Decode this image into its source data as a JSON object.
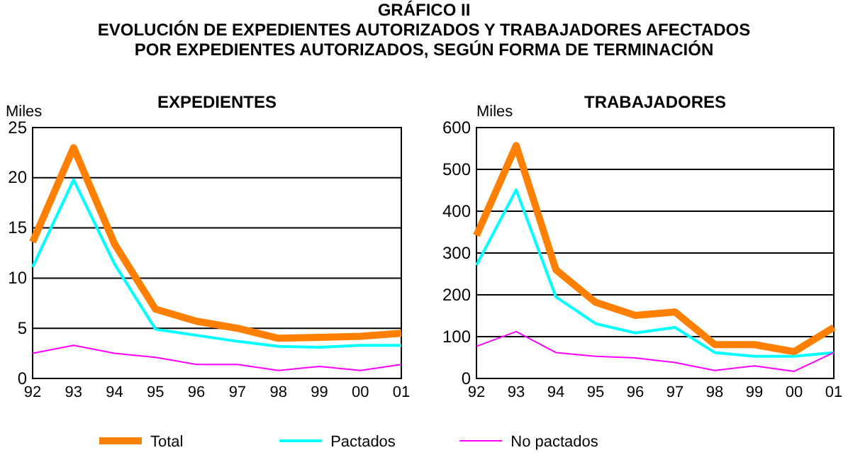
{
  "chart_data": [
    {
      "type": "line",
      "title": "GRÁFICO II\nEVOLUCIÓN DE EXPEDIENTES AUTORIZADOS Y TRABAJADORES AFECTADOS\nPOR EXPEDIENTES AUTORIZADOS, SEGÚN FORMA DE TERMINACIÓN",
      "subtitle": "EXPEDIENTES",
      "ylabel": "Miles",
      "categories": [
        "92",
        "93",
        "94",
        "95",
        "96",
        "97",
        "98",
        "99",
        "00",
        "01"
      ],
      "series": [
        {
          "name": "Total",
          "color": "#ff8000",
          "values": [
            13.6,
            23.0,
            13.4,
            6.9,
            5.7,
            5.0,
            4.0,
            4.1,
            4.2,
            4.5
          ]
        },
        {
          "name": "Pactados",
          "color": "#00ffff",
          "values": [
            11.1,
            19.8,
            11.4,
            4.9,
            4.3,
            3.7,
            3.2,
            3.1,
            3.3,
            3.3
          ]
        },
        {
          "name": "No pactados",
          "color": "#ff00ff",
          "values": [
            2.5,
            3.3,
            2.5,
            2.1,
            1.4,
            1.4,
            0.8,
            1.2,
            0.8,
            1.4
          ]
        }
      ],
      "ylim": [
        0,
        25
      ],
      "yticks": [
        0,
        5,
        10,
        15,
        20,
        25
      ],
      "grid": "y",
      "legend": "bottom"
    },
    {
      "type": "line",
      "title": "TRABAJADORES",
      "ylabel": "Miles",
      "categories": [
        "92",
        "93",
        "94",
        "95",
        "96",
        "97",
        "98",
        "99",
        "00",
        "01"
      ],
      "series": [
        {
          "color": "#ff8000",
          "values": [
            342,
            557,
            260,
            182,
            151,
            159,
            81,
            81,
            64,
            122
          ]
        },
        {
          "color": "#00ffff",
          "values": [
            271,
            451,
            195,
            131,
            109,
            122,
            62,
            53,
            53,
            62
          ]
        },
        {
          "color": "#ff00ff",
          "values": [
            77,
            112,
            62,
            53,
            49,
            38,
            19,
            30,
            17,
            62
          ]
        }
      ],
      "ylim": [
        0,
        600
      ],
      "yticks": [
        0,
        100,
        200,
        300,
        400,
        500,
        600
      ],
      "grid": "y"
    }
  ]
}
